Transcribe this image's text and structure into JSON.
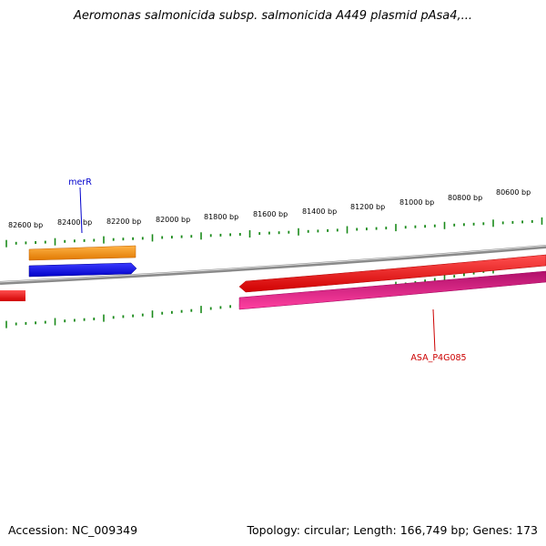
{
  "title": "Aeromonas salmonicida subsp. salmonicida A449 plasmid pAsa4,...",
  "footer": {
    "accession": "Accession: NC_009349",
    "topology": "Topology: circular; Length: 166,749 bp; Genes: 173"
  },
  "scale": {
    "unit": "bp",
    "labels": [
      {
        "bp": 82600,
        "text": "82600 bp"
      },
      {
        "bp": 82400,
        "text": "82400 bp"
      },
      {
        "bp": 82200,
        "text": "82200 bp"
      },
      {
        "bp": 82000,
        "text": "82000 bp"
      },
      {
        "bp": 81800,
        "text": "81800 bp"
      },
      {
        "bp": 81600,
        "text": "81600 bp"
      },
      {
        "bp": 81400,
        "text": "81400 bp"
      },
      {
        "bp": 81200,
        "text": "81200 bp"
      },
      {
        "bp": 81000,
        "text": "81000 bp"
      },
      {
        "bp": 80800,
        "text": "80800 bp"
      },
      {
        "bp": 80600,
        "text": "80600 bp"
      }
    ],
    "tick_color": "#1a8a1a"
  },
  "colors": {
    "backbone": "#8a8a8a",
    "merR_upper": "#ff8c00",
    "merR_arrow": "#0000ff",
    "forward_gene": "#ff0000",
    "ASA_P4G085": "#ff1493",
    "merR_label": "#0000cc",
    "ASA_P4G085_label": "#cc0000"
  },
  "genes": [
    {
      "name": "merR",
      "label": "merR"
    },
    {
      "name": "ASA_P4G085",
      "label": "ASA_P4G085"
    }
  ]
}
